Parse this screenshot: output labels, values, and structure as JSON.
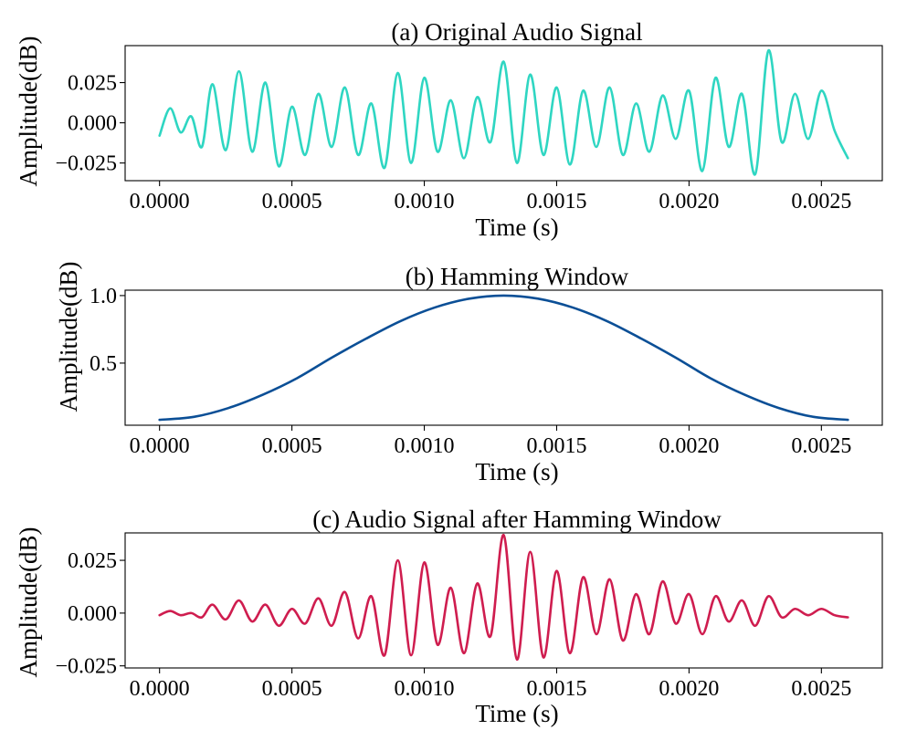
{
  "chart_data": [
    {
      "type": "line",
      "title": "(a) Original Audio Signal",
      "xlabel": "Time (s)",
      "ylabel": "Amplitude(dB)",
      "xlim": [
        -0.00013,
        0.00273
      ],
      "ylim": [
        -0.036,
        0.048
      ],
      "xticks": [
        "0.0000",
        "0.0005",
        "0.0010",
        "0.0015",
        "0.0020",
        "0.0025"
      ],
      "yticks": [
        "0.025",
        "0.000",
        "−0.025"
      ],
      "grid": false,
      "series": [
        {
          "color": "#2fd6c2",
          "x": [
            0.0,
            4e-05,
            8e-05,
            0.00012,
            0.00016,
            0.0002,
            0.00025,
            0.0003,
            0.00035,
            0.0004,
            0.00045,
            0.0005,
            0.00055,
            0.0006,
            0.00065,
            0.0007,
            0.00075,
            0.0008,
            0.00085,
            0.0009,
            0.00095,
            0.001,
            0.00105,
            0.0011,
            0.00115,
            0.0012,
            0.00125,
            0.0013,
            0.00135,
            0.0014,
            0.00145,
            0.0015,
            0.00155,
            0.0016,
            0.00165,
            0.0017,
            0.00175,
            0.0018,
            0.00185,
            0.0019,
            0.00195,
            0.002,
            0.00205,
            0.0021,
            0.00215,
            0.0022,
            0.00225,
            0.0023,
            0.00235,
            0.0024,
            0.00245,
            0.0025,
            0.00255,
            0.0026
          ],
          "y": [
            -0.008,
            0.009,
            -0.006,
            0.004,
            -0.015,
            0.024,
            -0.017,
            0.032,
            -0.018,
            0.025,
            -0.027,
            0.01,
            -0.02,
            0.018,
            -0.015,
            0.022,
            -0.02,
            0.012,
            -0.028,
            0.031,
            -0.025,
            0.028,
            -0.018,
            0.014,
            -0.022,
            0.016,
            -0.012,
            0.038,
            -0.025,
            0.03,
            -0.02,
            0.022,
            -0.026,
            0.02,
            -0.015,
            0.022,
            -0.02,
            0.012,
            -0.018,
            0.017,
            -0.01,
            0.02,
            -0.03,
            0.028,
            -0.015,
            0.018,
            -0.032,
            0.045,
            -0.012,
            0.018,
            -0.01,
            0.02,
            -0.005,
            -0.022
          ]
        }
      ]
    },
    {
      "type": "line",
      "title": "(b) Hamming Window",
      "xlabel": "Time (s)",
      "ylabel": "Amplitude(dB)",
      "xlim": [
        -0.00013,
        0.00273
      ],
      "ylim": [
        0.04,
        1.04
      ],
      "xticks": [
        "0.0000",
        "0.0005",
        "0.0010",
        "0.0015",
        "0.0020",
        "0.0025"
      ],
      "yticks": [
        "1.0",
        "0.5"
      ],
      "grid": false,
      "series": [
        {
          "color": "#0b4f96",
          "x": [
            0.0,
            0.00013,
            0.00026,
            0.00039,
            0.00052,
            0.00065,
            0.00078,
            0.00091,
            0.00104,
            0.00117,
            0.0013,
            0.00143,
            0.00156,
            0.00169,
            0.00182,
            0.00195,
            0.00208,
            0.00221,
            0.00234,
            0.00247,
            0.0026
          ],
          "y": [
            0.08,
            0.102,
            0.167,
            0.266,
            0.389,
            0.54,
            0.681,
            0.811,
            0.912,
            0.977,
            1.0,
            0.977,
            0.912,
            0.811,
            0.681,
            0.54,
            0.389,
            0.266,
            0.167,
            0.102,
            0.08
          ]
        }
      ]
    },
    {
      "type": "line",
      "title": "(c) Audio Signal after Hamming Window",
      "xlabel": "Time (s)",
      "ylabel": "Amplitude(dB)",
      "xlim": [
        -0.00013,
        0.00273
      ],
      "ylim": [
        -0.026,
        0.038
      ],
      "xticks": [
        "0.0000",
        "0.0005",
        "0.0010",
        "0.0015",
        "0.0020",
        "0.0025"
      ],
      "yticks": [
        "0.025",
        "0.000",
        "−0.025"
      ],
      "grid": false,
      "series": [
        {
          "color": "#cf1d4f",
          "x": [
            0.0,
            4e-05,
            8e-05,
            0.00012,
            0.00016,
            0.0002,
            0.00025,
            0.0003,
            0.00035,
            0.0004,
            0.00045,
            0.0005,
            0.00055,
            0.0006,
            0.00065,
            0.0007,
            0.00075,
            0.0008,
            0.00085,
            0.0009,
            0.00095,
            0.001,
            0.00105,
            0.0011,
            0.00115,
            0.0012,
            0.00125,
            0.0013,
            0.00135,
            0.0014,
            0.00145,
            0.0015,
            0.00155,
            0.0016,
            0.00165,
            0.0017,
            0.00175,
            0.0018,
            0.00185,
            0.0019,
            0.00195,
            0.002,
            0.00205,
            0.0021,
            0.00215,
            0.0022,
            0.00225,
            0.0023,
            0.00235,
            0.0024,
            0.00245,
            0.0025,
            0.00255,
            0.0026
          ],
          "y": [
            -0.001,
            0.001,
            -0.001,
            0.0,
            -0.002,
            0.004,
            -0.003,
            0.006,
            -0.004,
            0.004,
            -0.006,
            0.002,
            -0.005,
            0.007,
            -0.006,
            0.01,
            -0.012,
            0.008,
            -0.02,
            0.025,
            -0.02,
            0.024,
            -0.015,
            0.012,
            -0.019,
            0.014,
            -0.011,
            0.037,
            -0.022,
            0.029,
            -0.021,
            0.02,
            -0.019,
            0.017,
            -0.01,
            0.016,
            -0.013,
            0.009,
            -0.01,
            0.015,
            -0.005,
            0.009,
            -0.01,
            0.008,
            -0.004,
            0.006,
            -0.006,
            0.008,
            -0.002,
            0.002,
            -0.001,
            0.002,
            -0.001,
            -0.002
          ]
        }
      ]
    }
  ]
}
